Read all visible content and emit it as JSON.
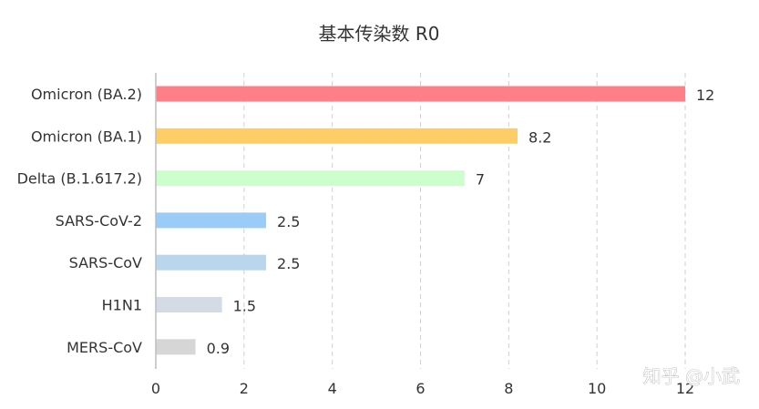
{
  "watermark": "知乎 @小武",
  "chart_data": {
    "type": "bar",
    "orientation": "horizontal",
    "title": "基本传染数 R0",
    "xlabel": "",
    "ylabel": "",
    "xlim": [
      0,
      12
    ],
    "xticks": [
      0,
      2,
      4,
      6,
      8,
      10,
      12
    ],
    "grid": true,
    "categories": [
      "Omicron (BA.2)",
      "Omicron (BA.1)",
      "Delta (B.1.617.2)",
      "SARS-CoV-2",
      "SARS-CoV",
      "H1N1",
      "MERS-CoV"
    ],
    "values": [
      12,
      8.2,
      7,
      2.5,
      2.5,
      1.5,
      0.9
    ],
    "data_labels": [
      "12",
      "8.2",
      "7",
      "2.5",
      "2.5",
      "1.5",
      "0.9"
    ],
    "colors": [
      "#ff7f86",
      "#ffcd66",
      "#ccffcc",
      "#99ccf7",
      "#b9d6ec",
      "#d4dbe5",
      "#d6d6d6"
    ]
  }
}
